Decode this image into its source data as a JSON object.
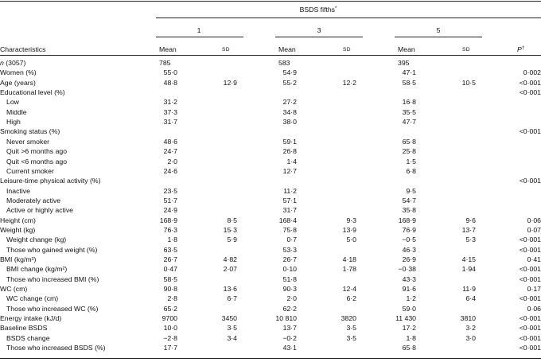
{
  "header": {
    "group_title": "BSDS fifths*",
    "characteristics_label": "Characteristics",
    "fifths": [
      "1",
      "3",
      "5"
    ],
    "mean_label": "Mean",
    "sd_label": "SD",
    "p_label": "P†"
  },
  "rows": [
    {
      "label": "n (3057)",
      "vals": [
        "785",
        "",
        "583",
        "",
        "395",
        "",
        ""
      ]
    },
    {
      "label": "Women (%)",
      "vals": [
        "55·0",
        "",
        "54·9",
        "",
        "47·1",
        "",
        "0·002"
      ]
    },
    {
      "label": "Age (years)",
      "vals": [
        "48·8",
        "12·9",
        "55·2",
        "12·2",
        "58·5",
        "10·5",
        "<0·001"
      ]
    },
    {
      "label": "Educational level (%)",
      "vals": [
        "",
        "",
        "",
        "",
        "",
        "",
        "<0·001"
      ]
    },
    {
      "label": "Low",
      "vals": [
        "31·2",
        "",
        "27·2",
        "",
        "16·8",
        "",
        ""
      ]
    },
    {
      "label": "Middle",
      "vals": [
        "37·3",
        "",
        "34·8",
        "",
        "35·5",
        "",
        ""
      ]
    },
    {
      "label": "High",
      "vals": [
        "31·7",
        "",
        "38·0",
        "",
        "47·7",
        "",
        ""
      ]
    },
    {
      "label": "Smoking status (%)",
      "vals": [
        "",
        "",
        "",
        "",
        "",
        "",
        "<0·001"
      ]
    },
    {
      "label": "Never smoker",
      "vals": [
        "48·6",
        "",
        "59·1",
        "",
        "65·8",
        "",
        ""
      ]
    },
    {
      "label": "Quit >6 months ago",
      "vals": [
        "24·7",
        "",
        "26·8",
        "",
        "25·8",
        "",
        ""
      ]
    },
    {
      "label": "Quit <6 months ago",
      "vals": [
        "2·0",
        "",
        "1·4",
        "",
        "1·5",
        "",
        ""
      ]
    },
    {
      "label": "Current smoker",
      "vals": [
        "24·6",
        "",
        "12·7",
        "",
        "6·8",
        "",
        ""
      ]
    },
    {
      "label": "Leisure-time physical activity (%)",
      "vals": [
        "",
        "",
        "",
        "",
        "",
        "",
        "<0·001"
      ]
    },
    {
      "label": "Inactive",
      "vals": [
        "23·5",
        "",
        "11·2",
        "",
        "9·5",
        "",
        ""
      ]
    },
    {
      "label": "Moderately active",
      "vals": [
        "51·7",
        "",
        "57·1",
        "",
        "54·7",
        "",
        ""
      ]
    },
    {
      "label": "Active or highly active",
      "vals": [
        "24·9",
        "",
        "31·7",
        "",
        "35·8",
        "",
        ""
      ]
    },
    {
      "label": "Height (cm)",
      "vals": [
        "168·9",
        "8·5",
        "168·4",
        "9·3",
        "168·9",
        "9·6",
        "0·06"
      ]
    },
    {
      "label": "Weight (kg)",
      "vals": [
        "76·3",
        "15·3",
        "75·8",
        "13·9",
        "76·9",
        "13·7",
        "0·07"
      ]
    },
    {
      "label": "Weight change (kg)",
      "vals": [
        "1·8",
        "5·9",
        "0·7",
        "5·0",
        "−0·5",
        "5·3",
        "<0·001"
      ]
    },
    {
      "label": "Those who gained weight (%)",
      "vals": [
        "63·5",
        "",
        "53·3",
        "",
        "46·3",
        "",
        "<0·001"
      ]
    },
    {
      "label": "BMI (kg/m²)",
      "vals": [
        "26·7",
        "4·82",
        "26·7",
        "4·18",
        "26·9",
        "4·15",
        "0·41"
      ]
    },
    {
      "label": "BMI change (kg/m²)",
      "vals": [
        "0·47",
        "2·07",
        "0·10",
        "1·78",
        "−0·38",
        "1·94",
        "<0·001"
      ]
    },
    {
      "label": "Those who increased BMI (%)",
      "vals": [
        "58·5",
        "",
        "51·8",
        "",
        "43·3",
        "",
        "<0·001"
      ]
    },
    {
      "label": "WC (cm)",
      "vals": [
        "90·8",
        "13·6",
        "90·3",
        "12·4",
        "91·6",
        "11·9",
        "0·17"
      ]
    },
    {
      "label": "WC change (cm)",
      "vals": [
        "2·8",
        "6·7",
        "2·0",
        "6·2",
        "1·2",
        "6·4",
        "<0·001"
      ]
    },
    {
      "label": "Those who increased WC (%)",
      "vals": [
        "65·2",
        "",
        "62·2",
        "",
        "59·0",
        "",
        "0·06"
      ]
    },
    {
      "label": "Energy intake (kJ/d)",
      "vals": [
        "9700",
        "3450",
        "10 810",
        "3820",
        "11 430",
        "3810",
        "<0·001"
      ]
    },
    {
      "label": "Baseline BSDS",
      "vals": [
        "10·0",
        "3·5",
        "13·7",
        "3·5",
        "17·2",
        "3·2",
        "<0·001"
      ]
    },
    {
      "label": "BSDS change",
      "vals": [
        "−2·8",
        "3·4",
        "−0·2",
        "3·5",
        "1·8",
        "3·0",
        "<0·001"
      ]
    },
    {
      "label": "Those who increased BSDS (%)",
      "vals": [
        "17·7",
        "",
        "43·1",
        "",
        "65·8",
        "",
        "<0·001"
      ]
    }
  ]
}
